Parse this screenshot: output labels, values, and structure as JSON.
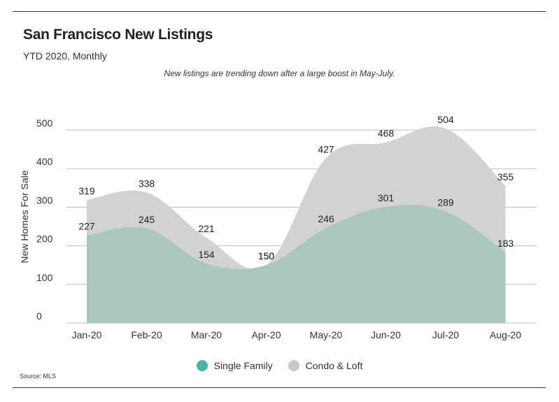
{
  "header": {
    "title": "San Francisco New Listings",
    "subtitle": "YTD 2020, Monthly",
    "note": "New listings are trending down after a large boost in May-July."
  },
  "legend": [
    {
      "label": "Single Family",
      "color": "#4fb3a4"
    },
    {
      "label": "Condo & Loft",
      "color": "#c9c9c9"
    }
  ],
  "source": "Source: MLS",
  "colors": {
    "single_family_fill": "#a9c6bf",
    "condo_fill": "#d2d2d2",
    "grid": "#bdbdbd"
  },
  "chart_data": {
    "type": "area",
    "categories": [
      "Jan-20",
      "Feb-20",
      "Mar-20",
      "Apr-20",
      "May-20",
      "Jun-20",
      "Jul-20",
      "Aug-20"
    ],
    "series": [
      {
        "name": "Single Family",
        "values": [
          227,
          245,
          154,
          150,
          246,
          301,
          289,
          183
        ]
      },
      {
        "name": "Condo & Loft",
        "values": [
          319,
          338,
          221,
          150,
          427,
          468,
          504,
          355
        ]
      }
    ],
    "ylabel": "New Homes For Sale",
    "xlabel": "",
    "ylim": [
      0,
      500
    ],
    "yticks": [
      0,
      100,
      200,
      300,
      400,
      500
    ],
    "grid": true,
    "legend_position": "bottom"
  }
}
